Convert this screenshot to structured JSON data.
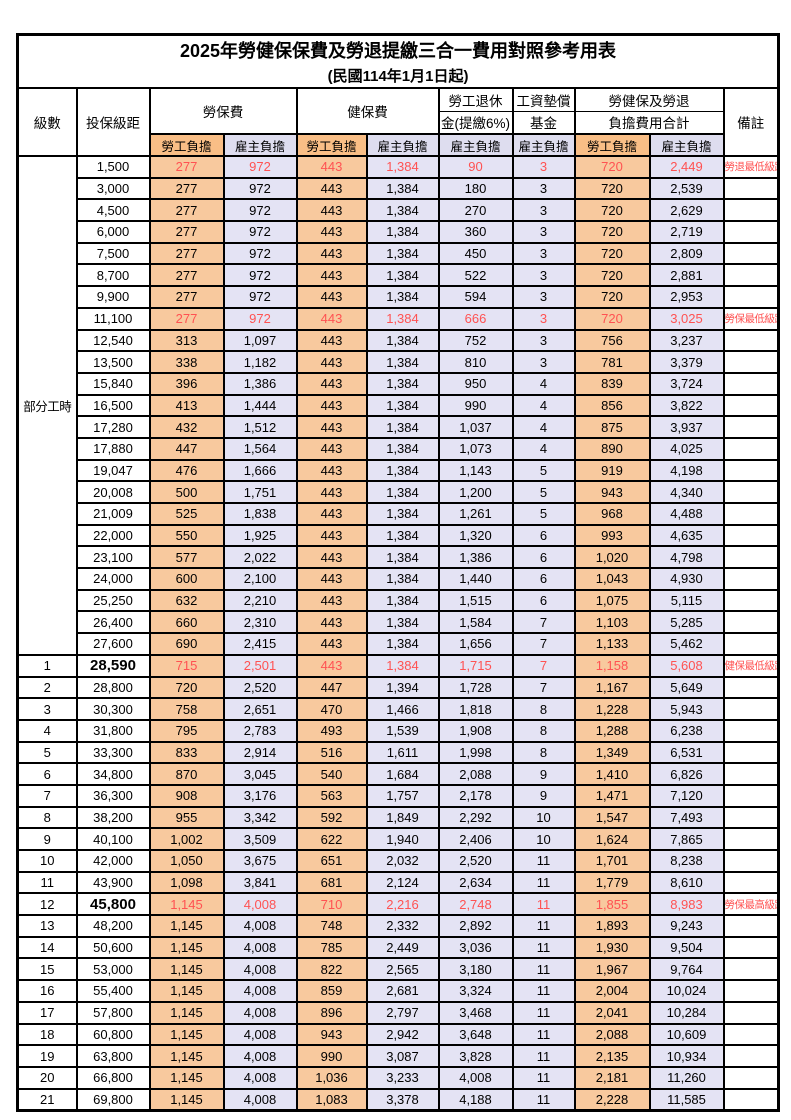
{
  "title": "2025年勞健保保費及勞退提繳三合一費用對照參考用表",
  "subtitle": "(民國114年1月1日起)",
  "columns": {
    "level": "級數",
    "bracket": "投保級距",
    "labor_group": "勞保費",
    "health_group": "健保費",
    "pension_line1": "勞工退休",
    "pension_line2": "金(提繳6%)",
    "fund_line1": "工資墊償",
    "fund_line2": "基金",
    "total_line1": "勞健保及勞退",
    "total_line2": "負擔費用合計",
    "remark": "備註",
    "employee": "勞工負擔",
    "employer": "雇主負擔"
  },
  "part_time_label": "部分工時",
  "colors": {
    "orange_header": "#F9BE86",
    "orange_body": "#F8C99E",
    "lavender_header": "#DEDDEF",
    "lavender_body": "#E4E3F4",
    "highlight_red": "#FF5252"
  },
  "rows": [
    {
      "level": "",
      "bracket": "1,500",
      "cells": [
        "277",
        "972",
        "443",
        "1,384",
        "90",
        "3",
        "720",
        "2,449"
      ],
      "remark": "勞退最低級距",
      "highlight": true,
      "bold": false
    },
    {
      "level": "",
      "bracket": "3,000",
      "cells": [
        "277",
        "972",
        "443",
        "1,384",
        "180",
        "3",
        "720",
        "2,539"
      ],
      "remark": "",
      "highlight": false,
      "bold": false
    },
    {
      "level": "",
      "bracket": "4,500",
      "cells": [
        "277",
        "972",
        "443",
        "1,384",
        "270",
        "3",
        "720",
        "2,629"
      ],
      "remark": "",
      "highlight": false,
      "bold": false
    },
    {
      "level": "",
      "bracket": "6,000",
      "cells": [
        "277",
        "972",
        "443",
        "1,384",
        "360",
        "3",
        "720",
        "2,719"
      ],
      "remark": "",
      "highlight": false,
      "bold": false
    },
    {
      "level": "",
      "bracket": "7,500",
      "cells": [
        "277",
        "972",
        "443",
        "1,384",
        "450",
        "3",
        "720",
        "2,809"
      ],
      "remark": "",
      "highlight": false,
      "bold": false
    },
    {
      "level": "",
      "bracket": "8,700",
      "cells": [
        "277",
        "972",
        "443",
        "1,384",
        "522",
        "3",
        "720",
        "2,881"
      ],
      "remark": "",
      "highlight": false,
      "bold": false
    },
    {
      "level": "",
      "bracket": "9,900",
      "cells": [
        "277",
        "972",
        "443",
        "1,384",
        "594",
        "3",
        "720",
        "2,953"
      ],
      "remark": "",
      "highlight": false,
      "bold": false
    },
    {
      "level": "",
      "bracket": "11,100",
      "cells": [
        "277",
        "972",
        "443",
        "1,384",
        "666",
        "3",
        "720",
        "3,025"
      ],
      "remark": "勞保最低級距",
      "highlight": true,
      "bold": false
    },
    {
      "level": "",
      "bracket": "12,540",
      "cells": [
        "313",
        "1,097",
        "443",
        "1,384",
        "752",
        "3",
        "756",
        "3,237"
      ],
      "remark": "",
      "highlight": false,
      "bold": false
    },
    {
      "level": "",
      "bracket": "13,500",
      "cells": [
        "338",
        "1,182",
        "443",
        "1,384",
        "810",
        "3",
        "781",
        "3,379"
      ],
      "remark": "",
      "highlight": false,
      "bold": false
    },
    {
      "level": "",
      "bracket": "15,840",
      "cells": [
        "396",
        "1,386",
        "443",
        "1,384",
        "950",
        "4",
        "839",
        "3,724"
      ],
      "remark": "",
      "highlight": false,
      "bold": false
    },
    {
      "level": "",
      "bracket": "16,500",
      "cells": [
        "413",
        "1,444",
        "443",
        "1,384",
        "990",
        "4",
        "856",
        "3,822"
      ],
      "remark": "",
      "highlight": false,
      "bold": false
    },
    {
      "level": "",
      "bracket": "17,280",
      "cells": [
        "432",
        "1,512",
        "443",
        "1,384",
        "1,037",
        "4",
        "875",
        "3,937"
      ],
      "remark": "",
      "highlight": false,
      "bold": false
    },
    {
      "level": "",
      "bracket": "17,880",
      "cells": [
        "447",
        "1,564",
        "443",
        "1,384",
        "1,073",
        "4",
        "890",
        "4,025"
      ],
      "remark": "",
      "highlight": false,
      "bold": false
    },
    {
      "level": "",
      "bracket": "19,047",
      "cells": [
        "476",
        "1,666",
        "443",
        "1,384",
        "1,143",
        "5",
        "919",
        "4,198"
      ],
      "remark": "",
      "highlight": false,
      "bold": false
    },
    {
      "level": "",
      "bracket": "20,008",
      "cells": [
        "500",
        "1,751",
        "443",
        "1,384",
        "1,200",
        "5",
        "943",
        "4,340"
      ],
      "remark": "",
      "highlight": false,
      "bold": false
    },
    {
      "level": "",
      "bracket": "21,009",
      "cells": [
        "525",
        "1,838",
        "443",
        "1,384",
        "1,261",
        "5",
        "968",
        "4,488"
      ],
      "remark": "",
      "highlight": false,
      "bold": false
    },
    {
      "level": "",
      "bracket": "22,000",
      "cells": [
        "550",
        "1,925",
        "443",
        "1,384",
        "1,320",
        "6",
        "993",
        "4,635"
      ],
      "remark": "",
      "highlight": false,
      "bold": false
    },
    {
      "level": "",
      "bracket": "23,100",
      "cells": [
        "577",
        "2,022",
        "443",
        "1,384",
        "1,386",
        "6",
        "1,020",
        "4,798"
      ],
      "remark": "",
      "highlight": false,
      "bold": false
    },
    {
      "level": "",
      "bracket": "24,000",
      "cells": [
        "600",
        "2,100",
        "443",
        "1,384",
        "1,440",
        "6",
        "1,043",
        "4,930"
      ],
      "remark": "",
      "highlight": false,
      "bold": false
    },
    {
      "level": "",
      "bracket": "25,250",
      "cells": [
        "632",
        "2,210",
        "443",
        "1,384",
        "1,515",
        "6",
        "1,075",
        "5,115"
      ],
      "remark": "",
      "highlight": false,
      "bold": false
    },
    {
      "level": "",
      "bracket": "26,400",
      "cells": [
        "660",
        "2,310",
        "443",
        "1,384",
        "1,584",
        "7",
        "1,103",
        "5,285"
      ],
      "remark": "",
      "highlight": false,
      "bold": false
    },
    {
      "level": "",
      "bracket": "27,600",
      "cells": [
        "690",
        "2,415",
        "443",
        "1,384",
        "1,656",
        "7",
        "1,133",
        "5,462"
      ],
      "remark": "",
      "highlight": false,
      "bold": false
    },
    {
      "level": "1",
      "bracket": "28,590",
      "cells": [
        "715",
        "2,501",
        "443",
        "1,384",
        "1,715",
        "7",
        "1,158",
        "5,608"
      ],
      "remark": "健保最低級距",
      "highlight": true,
      "bold": true
    },
    {
      "level": "2",
      "bracket": "28,800",
      "cells": [
        "720",
        "2,520",
        "447",
        "1,394",
        "1,728",
        "7",
        "1,167",
        "5,649"
      ],
      "remark": "",
      "highlight": false,
      "bold": false
    },
    {
      "level": "3",
      "bracket": "30,300",
      "cells": [
        "758",
        "2,651",
        "470",
        "1,466",
        "1,818",
        "8",
        "1,228",
        "5,943"
      ],
      "remark": "",
      "highlight": false,
      "bold": false
    },
    {
      "level": "4",
      "bracket": "31,800",
      "cells": [
        "795",
        "2,783",
        "493",
        "1,539",
        "1,908",
        "8",
        "1,288",
        "6,238"
      ],
      "remark": "",
      "highlight": false,
      "bold": false
    },
    {
      "level": "5",
      "bracket": "33,300",
      "cells": [
        "833",
        "2,914",
        "516",
        "1,611",
        "1,998",
        "8",
        "1,349",
        "6,531"
      ],
      "remark": "",
      "highlight": false,
      "bold": false
    },
    {
      "level": "6",
      "bracket": "34,800",
      "cells": [
        "870",
        "3,045",
        "540",
        "1,684",
        "2,088",
        "9",
        "1,410",
        "6,826"
      ],
      "remark": "",
      "highlight": false,
      "bold": false
    },
    {
      "level": "7",
      "bracket": "36,300",
      "cells": [
        "908",
        "3,176",
        "563",
        "1,757",
        "2,178",
        "9",
        "1,471",
        "7,120"
      ],
      "remark": "",
      "highlight": false,
      "bold": false
    },
    {
      "level": "8",
      "bracket": "38,200",
      "cells": [
        "955",
        "3,342",
        "592",
        "1,849",
        "2,292",
        "10",
        "1,547",
        "7,493"
      ],
      "remark": "",
      "highlight": false,
      "bold": false
    },
    {
      "level": "9",
      "bracket": "40,100",
      "cells": [
        "1,002",
        "3,509",
        "622",
        "1,940",
        "2,406",
        "10",
        "1,624",
        "7,865"
      ],
      "remark": "",
      "highlight": false,
      "bold": false
    },
    {
      "level": "10",
      "bracket": "42,000",
      "cells": [
        "1,050",
        "3,675",
        "651",
        "2,032",
        "2,520",
        "11",
        "1,701",
        "8,238"
      ],
      "remark": "",
      "highlight": false,
      "bold": false
    },
    {
      "level": "11",
      "bracket": "43,900",
      "cells": [
        "1,098",
        "3,841",
        "681",
        "2,124",
        "2,634",
        "11",
        "1,779",
        "8,610"
      ],
      "remark": "",
      "highlight": false,
      "bold": false
    },
    {
      "level": "12",
      "bracket": "45,800",
      "cells": [
        "1,145",
        "4,008",
        "710",
        "2,216",
        "2,748",
        "11",
        "1,855",
        "8,983"
      ],
      "remark": "勞保最高級距",
      "highlight": true,
      "bold": true
    },
    {
      "level": "13",
      "bracket": "48,200",
      "cells": [
        "1,145",
        "4,008",
        "748",
        "2,332",
        "2,892",
        "11",
        "1,893",
        "9,243"
      ],
      "remark": "",
      "highlight": false,
      "bold": false
    },
    {
      "level": "14",
      "bracket": "50,600",
      "cells": [
        "1,145",
        "4,008",
        "785",
        "2,449",
        "3,036",
        "11",
        "1,930",
        "9,504"
      ],
      "remark": "",
      "highlight": false,
      "bold": false
    },
    {
      "level": "15",
      "bracket": "53,000",
      "cells": [
        "1,145",
        "4,008",
        "822",
        "2,565",
        "3,180",
        "11",
        "1,967",
        "9,764"
      ],
      "remark": "",
      "highlight": false,
      "bold": false
    },
    {
      "level": "16",
      "bracket": "55,400",
      "cells": [
        "1,145",
        "4,008",
        "859",
        "2,681",
        "3,324",
        "11",
        "2,004",
        "10,024"
      ],
      "remark": "",
      "highlight": false,
      "bold": false
    },
    {
      "level": "17",
      "bracket": "57,800",
      "cells": [
        "1,145",
        "4,008",
        "896",
        "2,797",
        "3,468",
        "11",
        "2,041",
        "10,284"
      ],
      "remark": "",
      "highlight": false,
      "bold": false
    },
    {
      "level": "18",
      "bracket": "60,800",
      "cells": [
        "1,145",
        "4,008",
        "943",
        "2,942",
        "3,648",
        "11",
        "2,088",
        "10,609"
      ],
      "remark": "",
      "highlight": false,
      "bold": false
    },
    {
      "level": "19",
      "bracket": "63,800",
      "cells": [
        "1,145",
        "4,008",
        "990",
        "3,087",
        "3,828",
        "11",
        "2,135",
        "10,934"
      ],
      "remark": "",
      "highlight": false,
      "bold": false
    },
    {
      "level": "20",
      "bracket": "66,800",
      "cells": [
        "1,145",
        "4,008",
        "1,036",
        "3,233",
        "4,008",
        "11",
        "2,181",
        "11,260"
      ],
      "remark": "",
      "highlight": false,
      "bold": false
    },
    {
      "level": "21",
      "bracket": "69,800",
      "cells": [
        "1,145",
        "4,008",
        "1,083",
        "3,378",
        "4,188",
        "11",
        "2,228",
        "11,585"
      ],
      "remark": "",
      "highlight": false,
      "bold": false
    }
  ]
}
